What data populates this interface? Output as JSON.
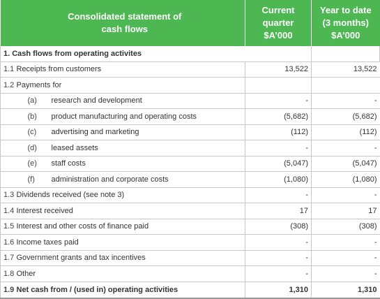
{
  "header": {
    "title_line1": "Consolidated statement of",
    "title_line2": "cash flows",
    "col_current": [
      "Current",
      "quarter",
      "$A’000"
    ],
    "col_ytd": [
      "Year to date",
      "(3 months)",
      "$A’000"
    ]
  },
  "section_title": "1. Cash flows from operating activites",
  "rows": [
    {
      "num": "1.1",
      "label": "Receipts from customers",
      "current": "13,522",
      "ytd": "13,522"
    },
    {
      "num": "1.2",
      "label": "Payments for",
      "current": "",
      "ytd": ""
    },
    {
      "sub": "(a)",
      "label": "research and development",
      "current": "-",
      "ytd": "-"
    },
    {
      "sub": "(b)",
      "label": "product manufacturing and operating costs",
      "current": "(5,682)",
      "ytd": "(5,682)"
    },
    {
      "sub": "(c)",
      "label": "advertising and marketing",
      "current": "(112)",
      "ytd": "(112)"
    },
    {
      "sub": "(d)",
      "label": "leased assets",
      "current": "-",
      "ytd": "-"
    },
    {
      "sub": "(e)",
      "label": "staff costs",
      "current": "(5,047)",
      "ytd": "(5,047)"
    },
    {
      "sub": "(f)",
      "label": "administration and corporate costs",
      "current": "(1,080)",
      "ytd": "(1,080)"
    },
    {
      "num": "1.3",
      "label": "Dividends received (see note 3)",
      "current": "-",
      "ytd": "-"
    },
    {
      "num": "1.4",
      "label": "Interest received",
      "current": "17",
      "ytd": "17"
    },
    {
      "num": "1.5",
      "label": "Interest and other costs of finance paid",
      "current": "(308)",
      "ytd": "(308)"
    },
    {
      "num": "1.6",
      "label": "Income taxes paid",
      "current": "-",
      "ytd": "-"
    },
    {
      "num": "1.7",
      "label": "Government grants and tax incentives",
      "current": "-",
      "ytd": "-"
    },
    {
      "num": "1.8",
      "label": "Other",
      "current": "-",
      "ytd": "-"
    }
  ],
  "total": {
    "num": "1.9",
    "label": "Net cash from / (used in) operating activities",
    "current": "1,310",
    "ytd": "1,310"
  },
  "colors": {
    "header_bg": "#4db851",
    "header_text": "#ffffff",
    "rule": "#c8c8c8"
  }
}
